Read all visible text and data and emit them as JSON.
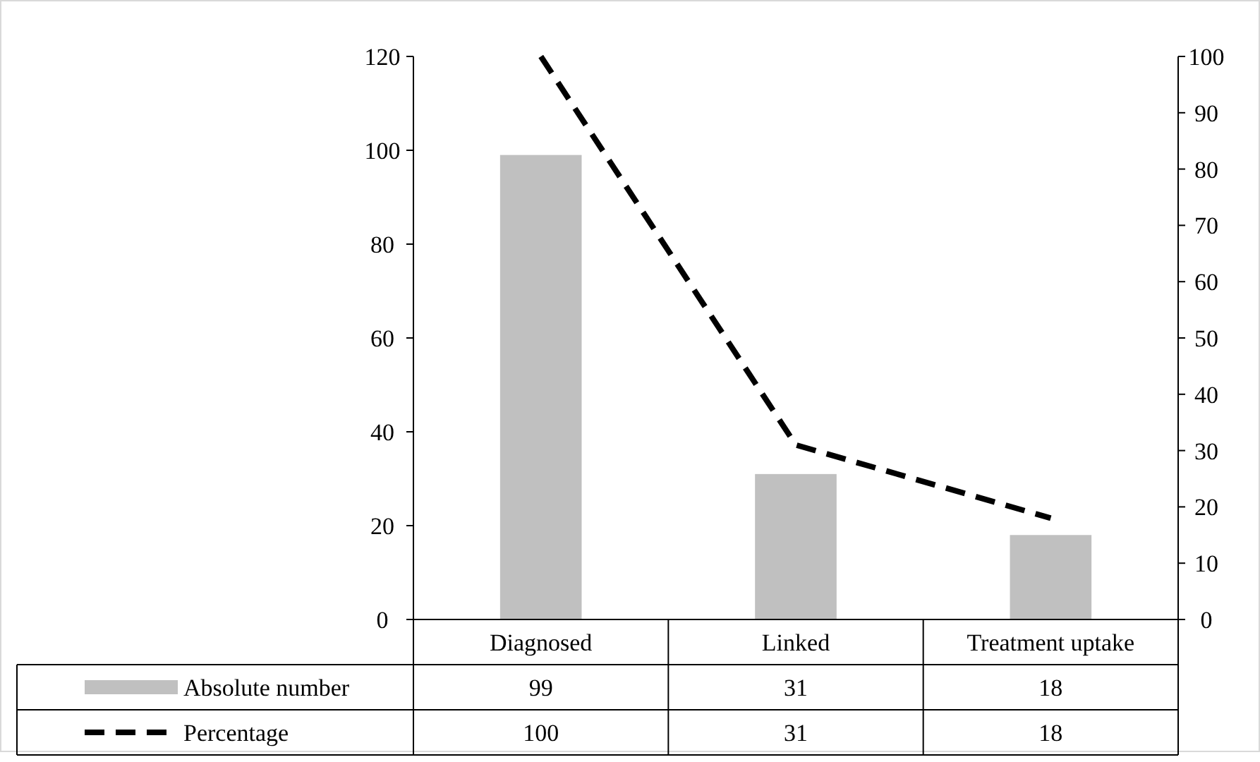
{
  "chart_data": {
    "type": "bar",
    "categories": [
      "Diagnosed",
      "Linked",
      "Treatment uptake"
    ],
    "series": [
      {
        "name": "Absolute number",
        "color": "#c0c0c0",
        "values": [
          99,
          31,
          18
        ]
      },
      {
        "name": "Percentage",
        "type": "line",
        "axis": "y2",
        "color": "#000000",
        "line_style": "dashed",
        "values": [
          100,
          31,
          18
        ]
      }
    ],
    "ylim": [
      0,
      120
    ],
    "yticks": [
      0,
      20,
      40,
      60,
      80,
      100,
      120
    ],
    "y2lim": [
      0,
      100
    ],
    "y2ticks": [
      0,
      10,
      20,
      30,
      40,
      50,
      60,
      70,
      80,
      90,
      100
    ],
    "data_labels": true,
    "legend": "bottom left",
    "grid": false
  }
}
